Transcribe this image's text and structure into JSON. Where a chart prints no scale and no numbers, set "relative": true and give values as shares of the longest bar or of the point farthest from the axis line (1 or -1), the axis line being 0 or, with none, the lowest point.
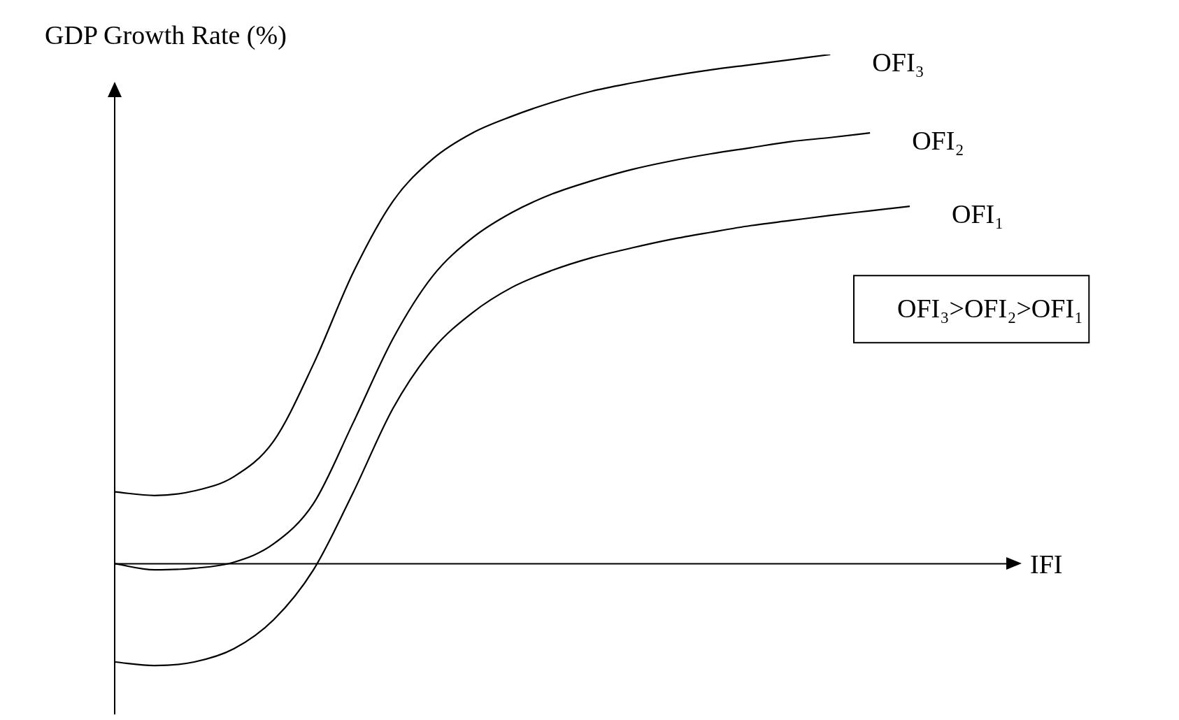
{
  "chart_data": {
    "type": "line",
    "relative": true,
    "xlabel": "IFI",
    "ylabel": "GDP Growth Rate (%)",
    "marker": "none",
    "categories": [
      null,
      null,
      null,
      null,
      null,
      null,
      null,
      null,
      null,
      null,
      null,
      null,
      null,
      null,
      null,
      null,
      null,
      null,
      null,
      null,
      null
    ],
    "series": [
      {
        "name": "OFI₃",
        "color": "#000000",
        "values": [
          0.141,
          0.134,
          0.143,
          0.171,
          0.241,
          0.392,
          0.572,
          0.712,
          0.795,
          0.846,
          0.879,
          0.906,
          0.928,
          0.944,
          0.958,
          0.97,
          0.98,
          0.99,
          1.0,
          null,
          null
        ]
      },
      {
        "name": "OFI₂",
        "color": "#000000",
        "values": [
          0.0,
          -0.012,
          -0.009,
          0.003,
          0.039,
          0.118,
          0.277,
          0.442,
          0.565,
          0.64,
          0.69,
          0.726,
          0.752,
          0.774,
          0.791,
          0.805,
          0.817,
          0.829,
          0.837,
          0.846,
          null
        ]
      },
      {
        "name": "OFI₁",
        "color": "#000000",
        "values": [
          -0.193,
          -0.2,
          -0.193,
          -0.167,
          -0.11,
          -0.012,
          0.14,
          0.305,
          0.421,
          0.493,
          0.543,
          0.576,
          0.601,
          0.62,
          0.637,
          0.651,
          0.664,
          0.674,
          0.684,
          0.693,
          0.702
        ]
      }
    ],
    "annotations": [
      "OFI₃>OFI₂>OFI₁"
    ]
  }
}
